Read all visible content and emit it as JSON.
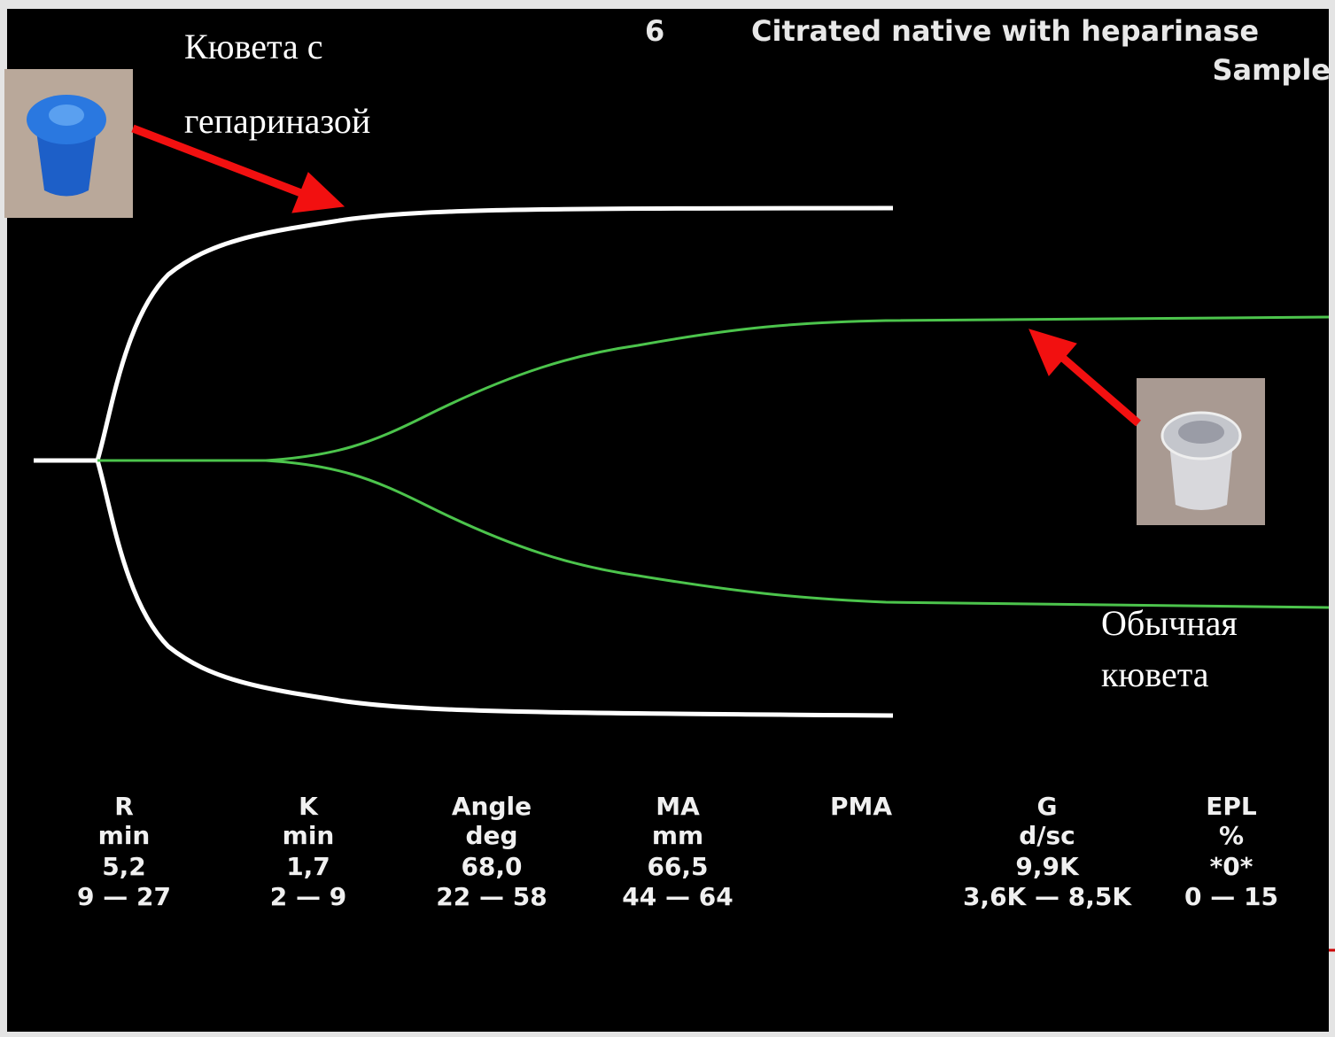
{
  "header": {
    "number": "6",
    "title": "Citrated native with heparinase",
    "subtitle": "Sample"
  },
  "annotations": {
    "heparinase_cup": [
      "Кювета с",
      "гепариназой"
    ],
    "plain_cup": [
      "Обычная",
      "кювета"
    ]
  },
  "parameters": [
    {
      "name": "R",
      "unit": "min",
      "value": "5,2",
      "range": "9 — 27"
    },
    {
      "name": "K",
      "unit": "min",
      "value": "1,7",
      "range": "2 — 9"
    },
    {
      "name": "Angle",
      "unit": "deg",
      "value": "68,0",
      "range": "22 — 58"
    },
    {
      "name": "MA",
      "unit": "mm",
      "value": "66,5",
      "range": "44 — 64"
    },
    {
      "name": "PMA"
    },
    {
      "name": "G",
      "unit": "d/sc",
      "value": "9,9K",
      "range": "3,6K — 8,5K"
    },
    {
      "name": "EPL",
      "unit": "%",
      "value": "*0*",
      "range": "0 — 15"
    }
  ]
}
